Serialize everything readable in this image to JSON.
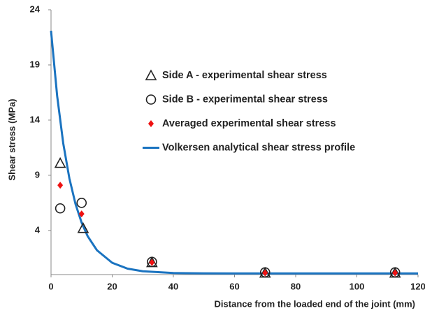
{
  "chart_data": {
    "type": "scatter",
    "x_label": "Distance from the loaded end of the joint (mm)",
    "y_label": "Shear stress (MPa)",
    "xlim": [
      0,
      120
    ],
    "xticks": [
      0,
      20,
      40,
      60,
      80,
      100,
      120
    ],
    "ylim": [
      0,
      24
    ],
    "yticks": [
      4,
      9,
      14,
      19,
      24
    ],
    "legend": "upper right",
    "series": [
      {
        "name": "Side A - experimental shear stress",
        "color": "#222222",
        "marker": "triangle",
        "x": [
          3,
          10.5,
          33,
          70,
          112.5
        ],
        "values": [
          10.1,
          4.2,
          1.1,
          0.15,
          0.15
        ]
      },
      {
        "name": "Side B - experimental shear stress",
        "color": "#222222",
        "marker": "circle",
        "x": [
          3,
          10,
          33,
          70,
          112.5
        ],
        "values": [
          6.0,
          6.5,
          1.15,
          0.2,
          0.2
        ]
      },
      {
        "name": "Averaged experimental shear stress",
        "color": "#ee1111",
        "marker": "diamond",
        "x": [
          3,
          10,
          33,
          70,
          112.5
        ],
        "values": [
          8.1,
          5.5,
          1.1,
          0.15,
          0.15
        ]
      },
      {
        "name": "Volkersen analytical shear stress profile",
        "color": "#1a73c0",
        "marker": "line",
        "x": [
          0,
          2,
          4,
          6,
          8,
          10,
          12,
          15,
          20,
          25,
          30,
          40,
          50,
          60,
          80,
          100,
          120
        ],
        "values": [
          22.1,
          16.2,
          11.88,
          8.72,
          6.4,
          4.71,
          3.47,
          2.21,
          1.07,
          0.54,
          0.3,
          0.14,
          0.11,
          0.1,
          0.1,
          0.1,
          0.1
        ]
      }
    ]
  }
}
